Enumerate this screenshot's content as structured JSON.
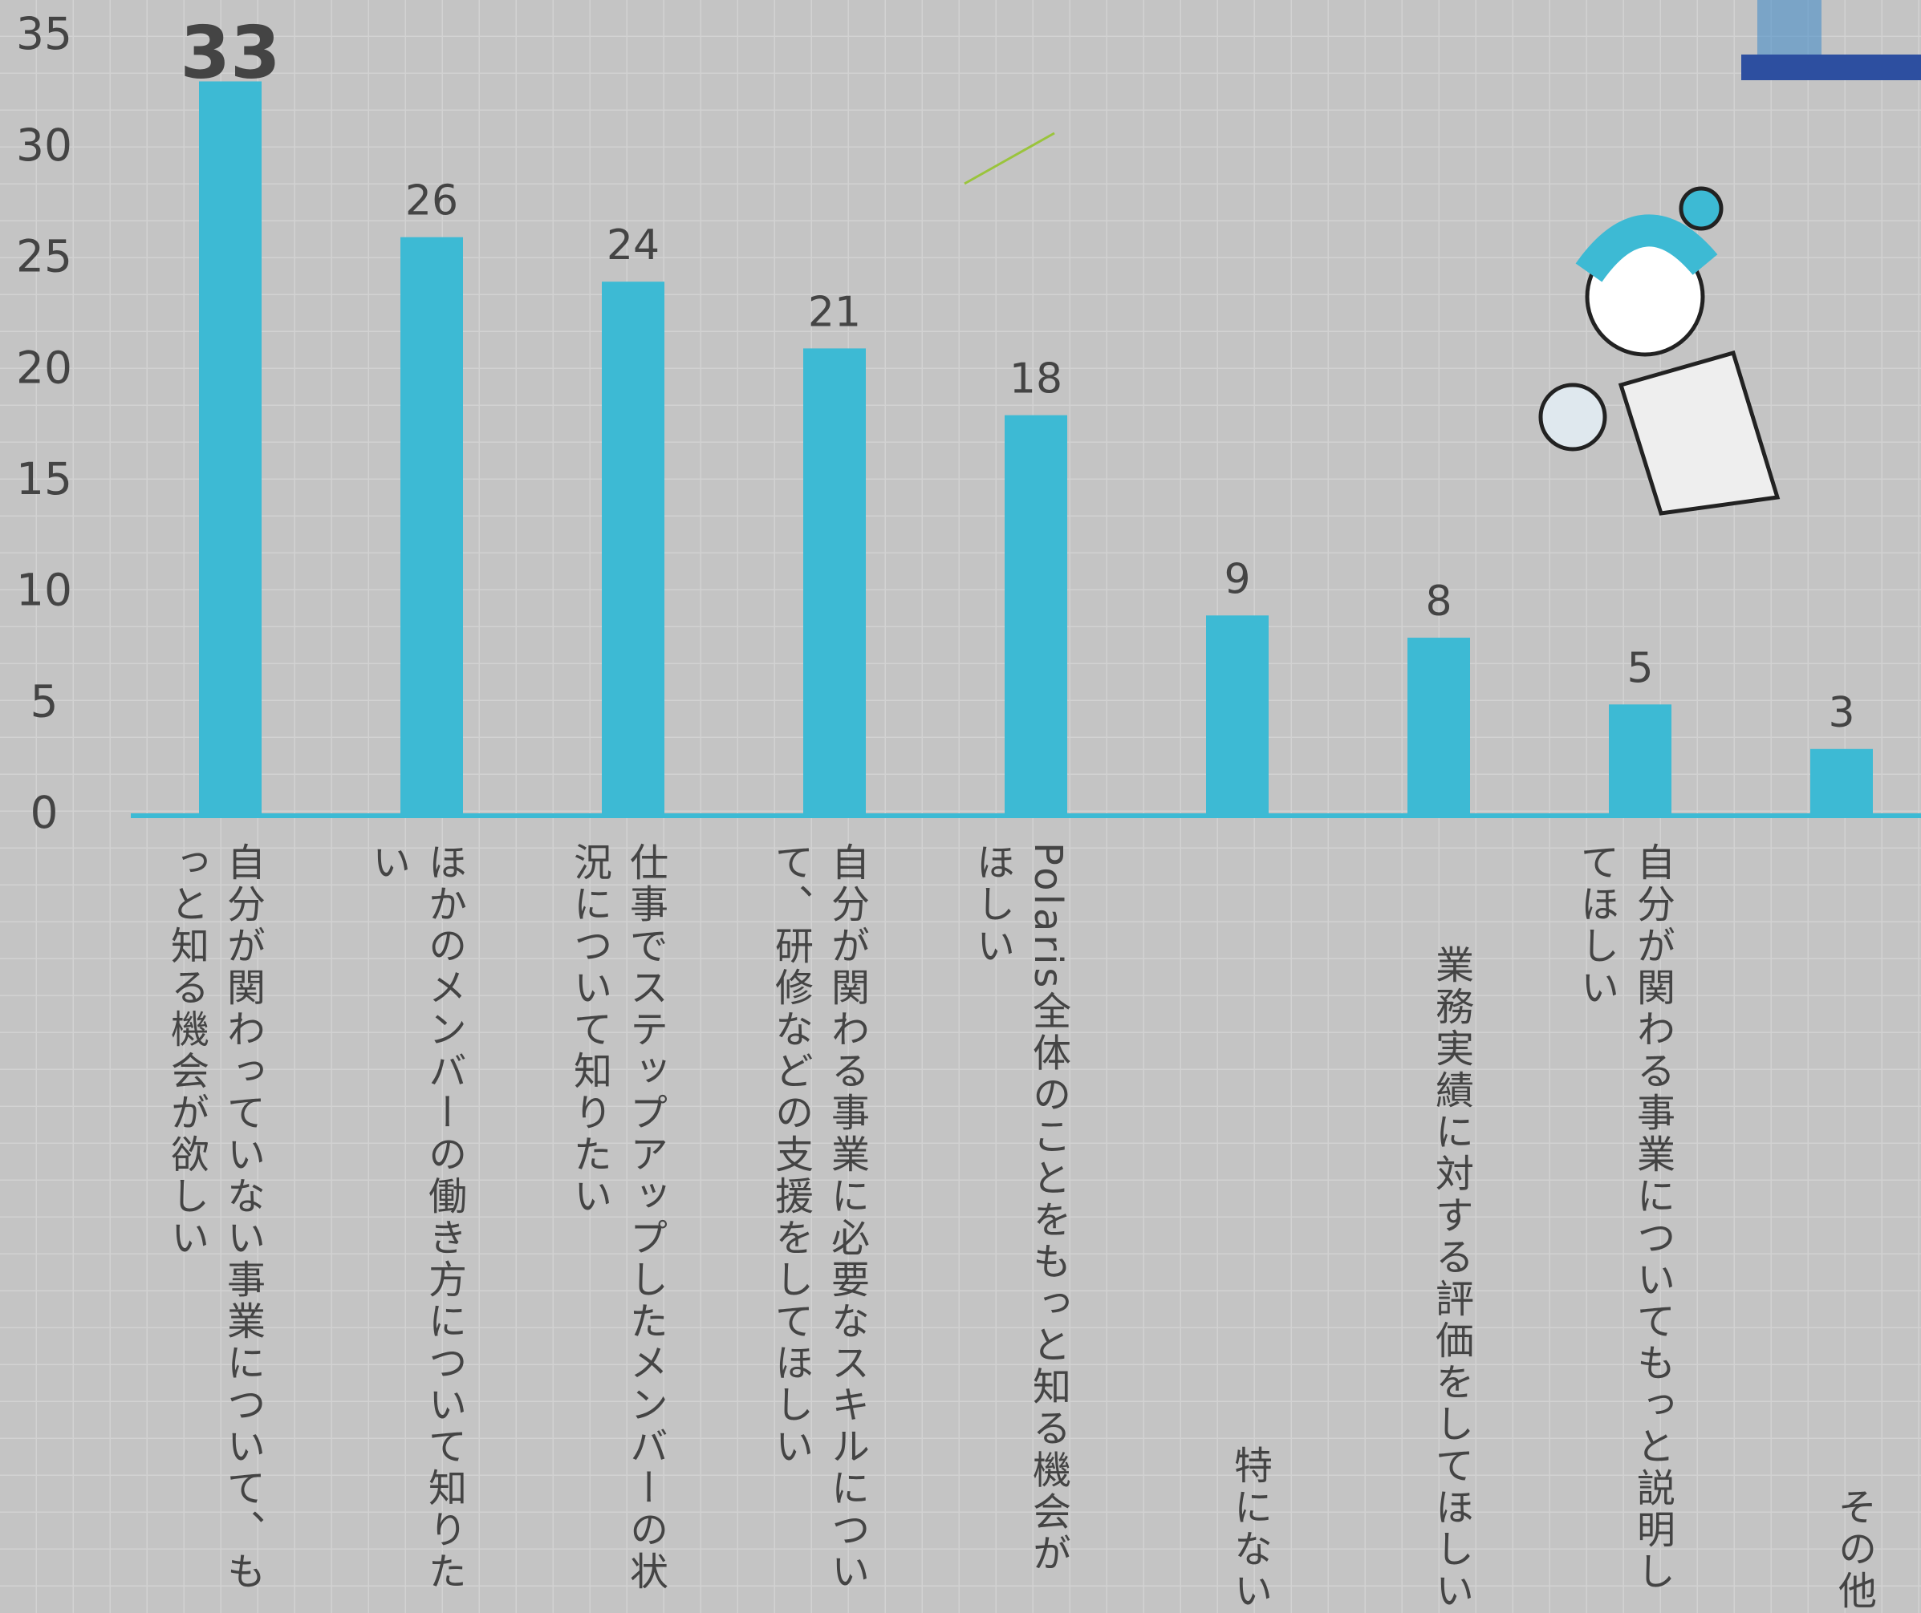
{
  "chart_data": {
    "type": "bar",
    "categories": [
      "自分が関わっていない事業について、もっと知る機会が欲しい",
      "ほかのメンバーの働き方について知りたい",
      "仕事でステップアップしたメンバーの状況について知りたい",
      "自分が関わる事業に必要なスキルについて、研修などの支援をしてほしい",
      "Polaris全体のことをもっと知る機会がほしい",
      "特にない",
      "業務実績に対する評価をしてほしい",
      "自分が関わる事業についてもっと説明してほしい",
      "その他"
    ],
    "values": [
      33,
      26,
      24,
      21,
      18,
      9,
      8,
      5,
      3
    ],
    "color": "#3dbad4",
    "ylim": [
      0,
      35
    ],
    "yticks": [
      0,
      5,
      10,
      15,
      20,
      25,
      30,
      35
    ]
  }
}
